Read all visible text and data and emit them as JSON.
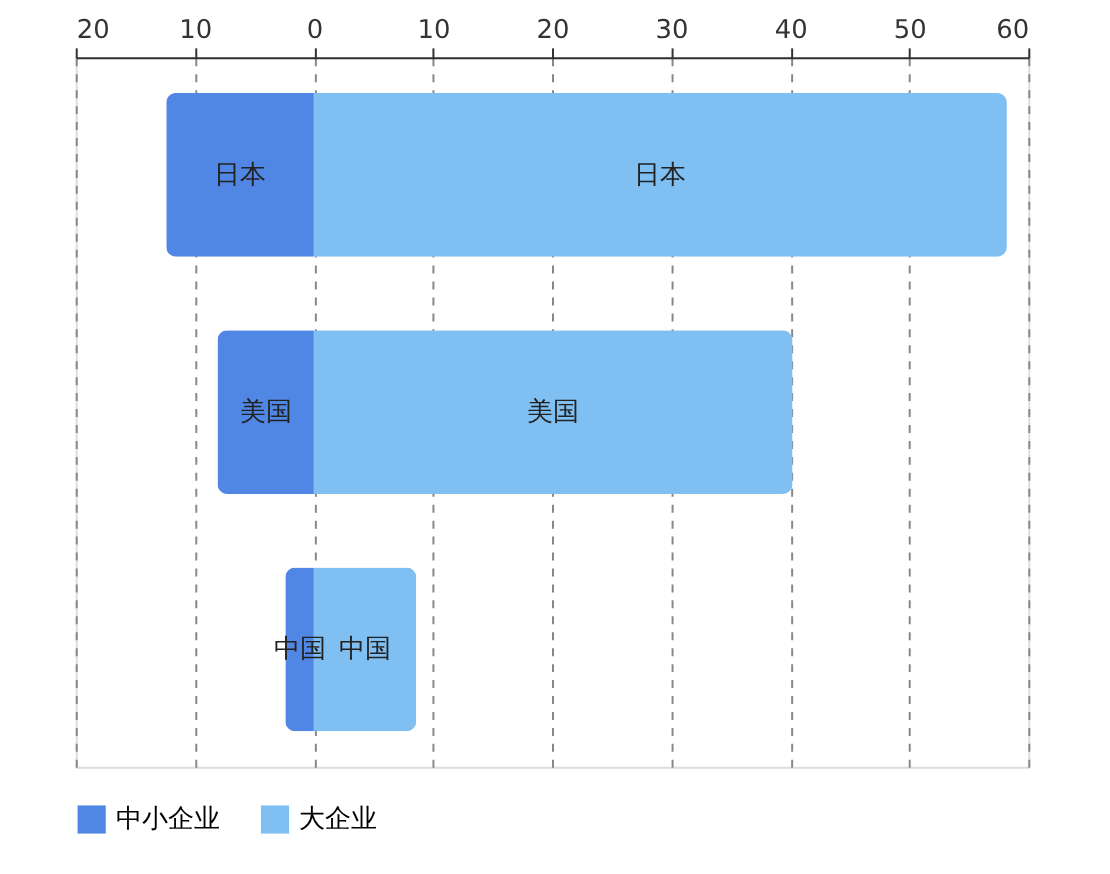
{
  "chart_data": {
    "type": "bar",
    "orientation": "horizontal",
    "stacked": true,
    "categories": [
      "日本",
      "美国",
      "中国"
    ],
    "series": [
      {
        "name": "中小企业",
        "color": "#5087e5",
        "values": [
          -12.4,
          -8.1,
          -2.4
        ]
      },
      {
        "name": "大企业",
        "color": "#80bff2",
        "values": [
          58.2,
          40.2,
          8.6
        ]
      }
    ],
    "xlim": [
      -20,
      60
    ],
    "xticks": [
      {
        "value": -20,
        "label": "20"
      },
      {
        "value": -10,
        "label": "10"
      },
      0,
      10,
      20,
      30,
      40,
      50,
      60
    ],
    "grid": "x",
    "legend": "bottom",
    "tick_labels": "x"
  }
}
